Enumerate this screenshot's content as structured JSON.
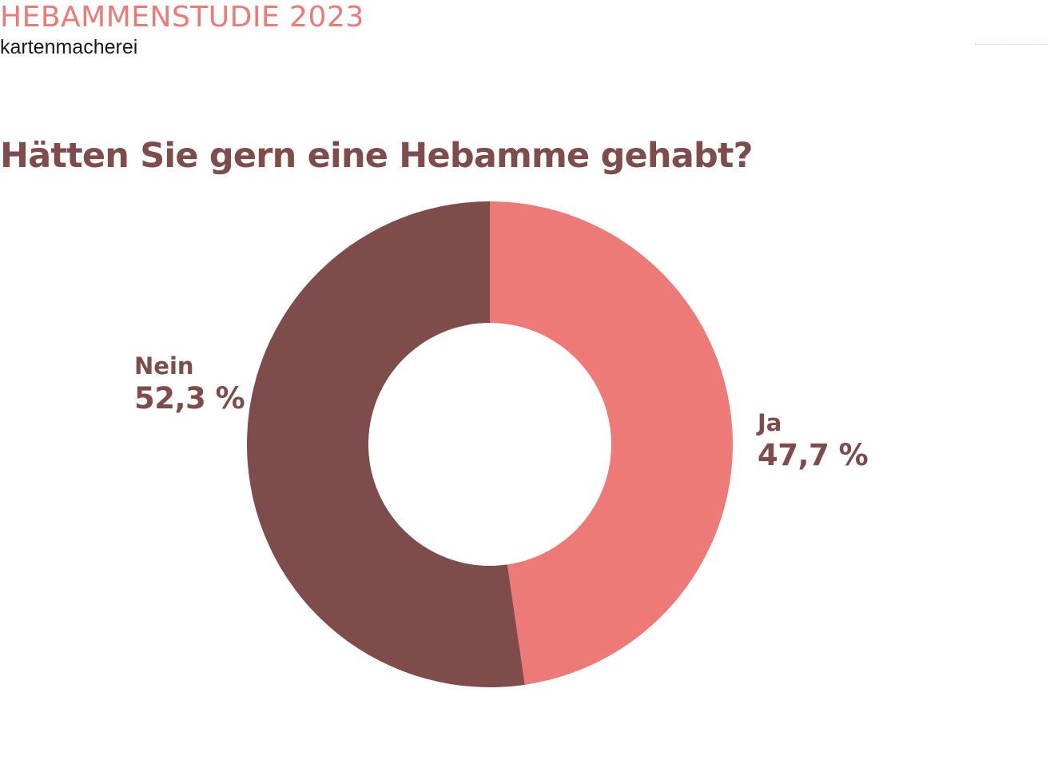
{
  "header": {
    "study_title": "HEBAMMENSTUDIE 2023",
    "brand": "kartenmacherei"
  },
  "colors": {
    "accent": "#ee7a78",
    "dark": "#7e4c4a",
    "text_dark": "#1a1a1a",
    "background": "#ffffff"
  },
  "chart_data": {
    "type": "pie",
    "variant": "donut",
    "title": "Hätten Sie gern eine Hebamme gehabt?",
    "start_angle_deg": 0,
    "direction": "clockwise",
    "slices": [
      {
        "label": "Ja",
        "value": 47.7,
        "value_label": "47,7 %",
        "color": "#ee7a78"
      },
      {
        "label": "Nein",
        "value": 52.3,
        "value_label": "52,3 %",
        "color": "#7e4c4a"
      }
    ]
  }
}
